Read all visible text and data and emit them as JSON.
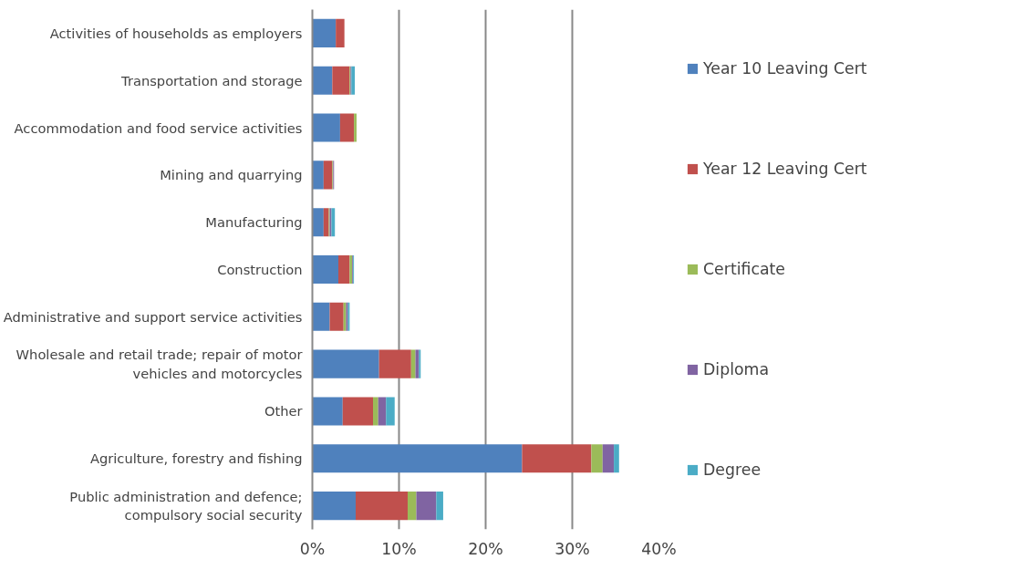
{
  "chart_data": {
    "type": "bar",
    "orientation": "horizontal",
    "stacked": true,
    "categories": [
      "Activities of households as employers",
      "Transportation and storage",
      "Accommodation and food service activities",
      "Mining and quarrying",
      "Manufacturing",
      "Construction",
      "Administrative and support service activities",
      "Wholesale and retail trade; repair of motor vehicles and motorcycles",
      "Other",
      "Agriculture, forestry and fishing",
      "Public administration and defence; compulsory social security"
    ],
    "series": [
      {
        "name": "Year 10 Leaving Cert",
        "color": "#4f81bd",
        "values": [
          2.7,
          2.3,
          3.2,
          1.3,
          1.3,
          3.0,
          2.0,
          7.7,
          3.5,
          24.2,
          5.0
        ]
      },
      {
        "name": "Year 12 Leaving Cert",
        "color": "#c0504d",
        "values": [
          1.0,
          2.0,
          1.6,
          1.0,
          0.6,
          1.3,
          1.6,
          3.7,
          3.5,
          8.0,
          6.0
        ]
      },
      {
        "name": "Certificate",
        "color": "#9bbb59",
        "values": [
          0,
          0.1,
          0.3,
          0.1,
          0.1,
          0.3,
          0.3,
          0.5,
          0.6,
          1.3,
          1.0
        ]
      },
      {
        "name": "Diploma",
        "color": "#8064a2",
        "values": [
          0,
          0.1,
          0,
          0.1,
          0.2,
          0.1,
          0.2,
          0.4,
          0.9,
          1.3,
          2.3
        ]
      },
      {
        "name": "Degree",
        "color": "#4bacc6",
        "values": [
          0,
          0.4,
          0,
          0,
          0.4,
          0.1,
          0.2,
          0.2,
          1.0,
          0.6,
          0.8
        ]
      }
    ],
    "xlim": [
      0,
      40
    ],
    "xticks": [
      {
        "value": 0,
        "label": "0%"
      },
      {
        "value": 10,
        "label": "10%"
      },
      {
        "value": 20,
        "label": "20%"
      },
      {
        "value": 30,
        "label": "30%"
      },
      {
        "value": 40,
        "label": "40%"
      }
    ],
    "grid": "x",
    "legend": "right"
  }
}
